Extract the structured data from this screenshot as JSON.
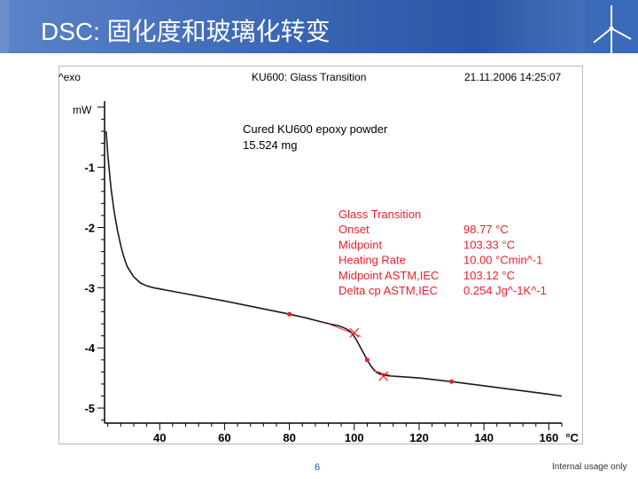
{
  "slide": {
    "title": "DSC:  固化度和玻璃化转变",
    "page_number": "6",
    "footer_note": "Internal usage only"
  },
  "colors": {
    "header": "#3b66b4",
    "curve": "#1a1a1a",
    "annotation": "#e8202a",
    "axis": "#000000"
  },
  "logo_icon": "wind-turbine-icon",
  "chart_data": {
    "type": "line",
    "title": "KU600: Glass Transition",
    "header_left": "^exo",
    "header_right": "21.11.2006 14:25:07",
    "ylabel": "mW",
    "xunit": "°C",
    "xlim": [
      23,
      164
    ],
    "ylim": [
      -5.25,
      0.1
    ],
    "x_ticks": [
      40,
      60,
      80,
      100,
      120,
      140,
      160
    ],
    "y_ticks": [
      -1,
      -2,
      -3,
      -4,
      -5
    ],
    "sample": {
      "line1": "Cured KU600 epoxy powder",
      "line2": "15.524 mg"
    },
    "results": [
      {
        "label": "Glass Transition",
        "value": ""
      },
      {
        "label": "Onset",
        "value": "98.77 °C"
      },
      {
        "label": "Midpoint",
        "value": "103.33 °C"
      },
      {
        "label": "Heating Rate",
        "value": "10.00 °Cmin^-1"
      },
      {
        "label": "Midpoint ASTM,IEC",
        "value": "103.12 °C"
      },
      {
        "label": "Delta cp ASTM,IEC",
        "value": "0.254 Jg^-1K^-1"
      }
    ],
    "series": [
      {
        "x": [
          23.5,
          24,
          25,
          26,
          27,
          28,
          29,
          30,
          32,
          34,
          36,
          38,
          40,
          45,
          50,
          60,
          70,
          80,
          85,
          90,
          93,
          95,
          96,
          97,
          98,
          99,
          100,
          101,
          102,
          103,
          104,
          105,
          106,
          107,
          108,
          109,
          110,
          112,
          115,
          120,
          130,
          140,
          150,
          160,
          164
        ],
        "y": [
          -0.4,
          -0.8,
          -1.35,
          -1.75,
          -2.05,
          -2.3,
          -2.5,
          -2.65,
          -2.82,
          -2.92,
          -2.97,
          -3.0,
          -3.02,
          -3.07,
          -3.12,
          -3.22,
          -3.33,
          -3.44,
          -3.5,
          -3.57,
          -3.61,
          -3.63,
          -3.65,
          -3.67,
          -3.7,
          -3.74,
          -3.81,
          -3.9,
          -4.0,
          -4.1,
          -4.2,
          -4.29,
          -4.36,
          -4.41,
          -4.44,
          -4.45,
          -4.46,
          -4.47,
          -4.48,
          -4.5,
          -4.56,
          -4.63,
          -4.7,
          -4.77,
          -4.8
        ]
      }
    ],
    "markers": [
      {
        "kind": "dot",
        "x": 80,
        "y": -3.44
      },
      {
        "kind": "dot",
        "x": 104,
        "y": -4.2
      },
      {
        "kind": "dot",
        "x": 130,
        "y": -4.56
      },
      {
        "kind": "cross",
        "x": 100,
        "y": -3.75
      },
      {
        "kind": "cross",
        "x": 109,
        "y": -4.47
      }
    ]
  }
}
